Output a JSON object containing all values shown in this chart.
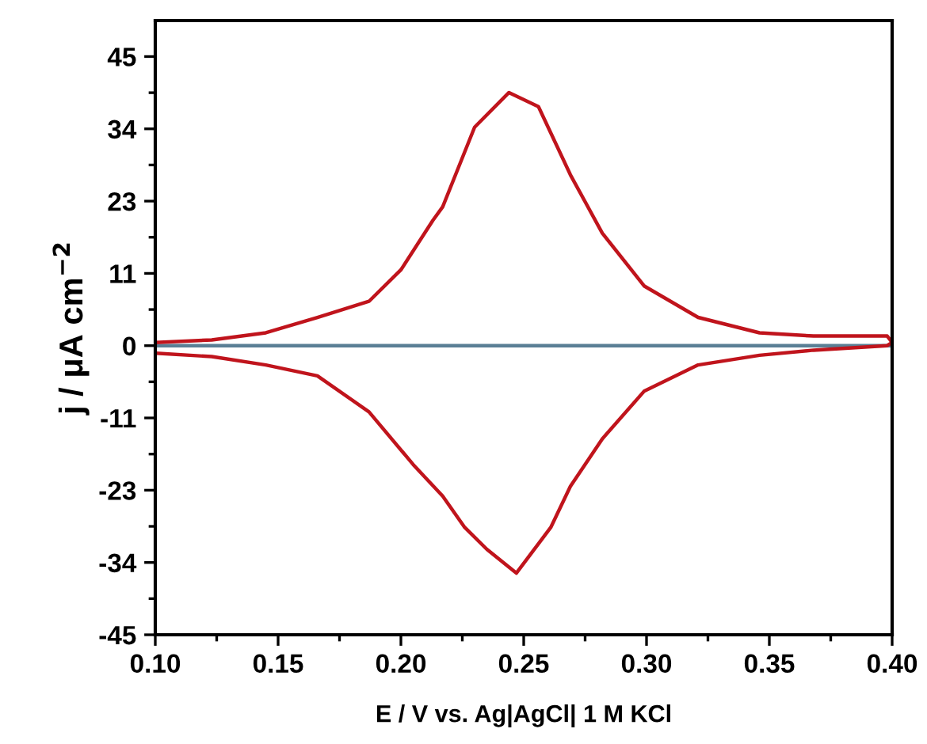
{
  "chart_data": {
    "type": "line",
    "xlabel": "E / V vs. Ag|AgCl| 1 M KCl",
    "ylabel": "j / μA cm$^{−2}$",
    "xlim": [
      0.1,
      0.4
    ],
    "xticks": [
      {
        "value": 0.1,
        "label": "0.10"
      },
      {
        "value": 0.15,
        "label": "0.15"
      },
      {
        "value": 0.2,
        "label": "0.20"
      },
      {
        "value": 0.25,
        "label": "0.25"
      },
      {
        "value": 0.3,
        "label": "0.30"
      },
      {
        "value": 0.35,
        "label": "0.35"
      },
      {
        "value": 0.4,
        "label": "0.40"
      }
    ],
    "ylim": [
      -45,
      50.6
    ],
    "yticks": [
      -45,
      {
        "value": -33.75,
        "label": "-34"
      },
      {
        "value": -22.5,
        "label": "-23"
      },
      {
        "value": -11.25,
        "label": "-11"
      },
      0,
      {
        "value": 11.25,
        "label": "11"
      },
      {
        "value": 22.5,
        "label": "23"
      },
      {
        "value": 33.75,
        "label": "34"
      },
      45
    ],
    "grid": false,
    "legend": false,
    "marker": "none",
    "line_style": "solid",
    "series": [
      {
        "color": "#5a7f95",
        "x": [
          0.1,
          0.4
        ],
        "values": [
          0,
          0
        ]
      },
      {
        "color": "#c0141c",
        "x": [
          0.1,
          0.123,
          0.145,
          0.166,
          0.187,
          0.2,
          0.213,
          0.217,
          0.23,
          0.244,
          0.256,
          0.269,
          0.282,
          0.299,
          0.321,
          0.346,
          0.368,
          0.398,
          0.4,
          0.398,
          0.368,
          0.346,
          0.321,
          0.299,
          0.282,
          0.269,
          0.261,
          0.247,
          0.235,
          0.226,
          0.217,
          0.205,
          0.187,
          0.166,
          0.145,
          0.123,
          0.101
        ],
        "values": [
          0.5,
          0.9,
          2,
          4.4,
          6.9,
          11.8,
          19.5,
          21.6,
          34,
          39.4,
          37.2,
          26.6,
          17.5,
          9.3,
          4.4,
          2,
          1.5,
          1.5,
          0.5,
          0,
          -0.7,
          -1.5,
          -3,
          -7.1,
          -14.5,
          -21.9,
          -28.3,
          -35.4,
          -31.7,
          -28.3,
          -23.4,
          -18.5,
          -10.3,
          -4.7,
          -3,
          -1.7,
          -1.2
        ]
      }
    ]
  }
}
